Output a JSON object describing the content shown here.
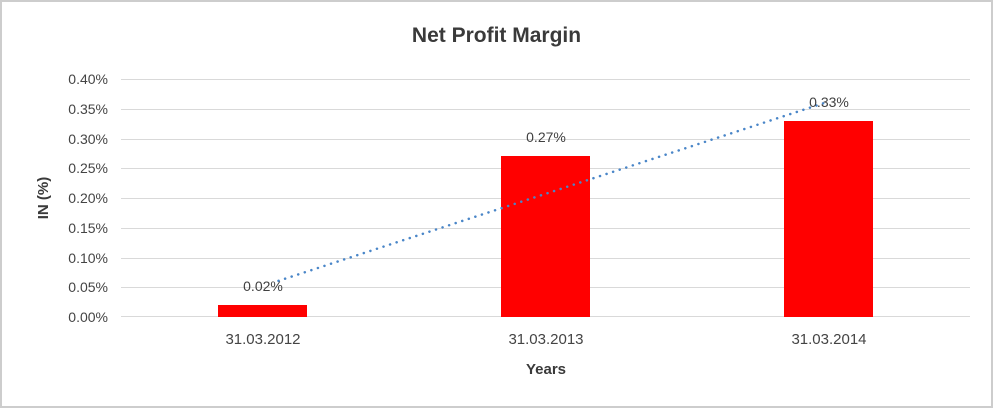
{
  "chart_data": {
    "type": "bar",
    "title": "Net Profit Margin",
    "xlabel": "Years",
    "ylabel": "IN (%)",
    "categories": [
      "31.03.2012",
      "31.03.2013",
      "31.03.2014"
    ],
    "values": [
      0.02,
      0.27,
      0.33
    ],
    "data_labels": [
      "0.02%",
      "0.27%",
      "0.33%"
    ],
    "ylim": [
      0,
      0.4
    ],
    "ytick_labels_top_to_bottom": [
      "0.40%",
      "0.35%",
      "0.30%",
      "0.25%",
      "0.20%",
      "0.15%",
      "0.10%",
      "0.05%",
      "0.00%"
    ],
    "grid": true,
    "legend": false,
    "bar_color": "#ff0000",
    "gridline_color": "#d9d9d9",
    "trendline": {
      "fit": "linear",
      "style": "dotted",
      "color": "#4a86c8",
      "start_value": 0.052,
      "end_value": 0.362
    }
  }
}
